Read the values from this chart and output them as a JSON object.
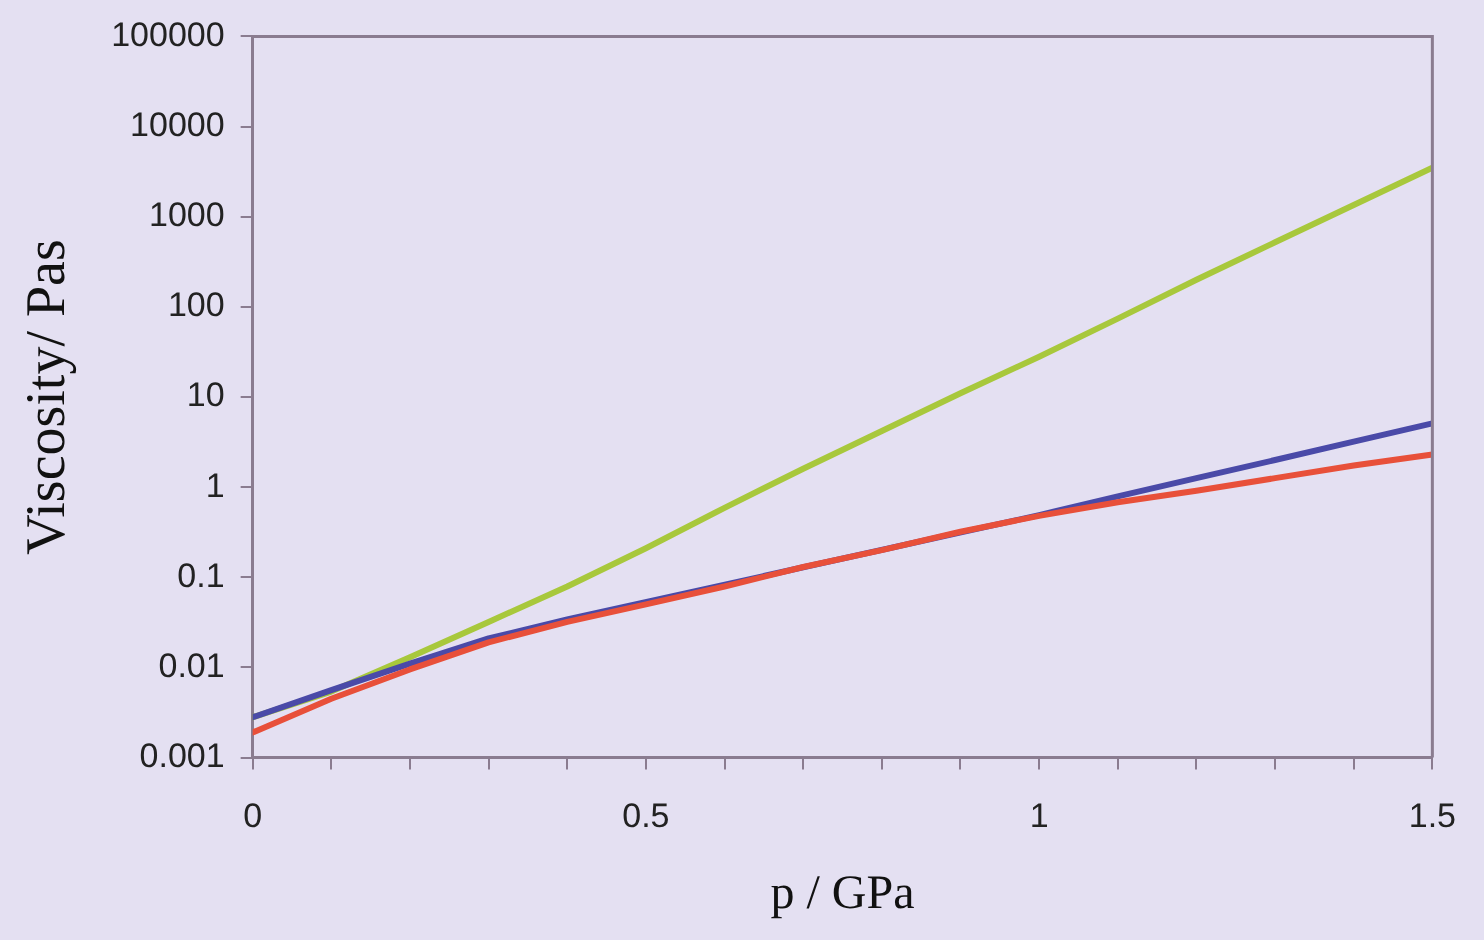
{
  "chart_data": {
    "type": "line",
    "xlabel": "p / GPa",
    "ylabel": "Viscosity/ Pas",
    "log": "y",
    "grid": false,
    "legend": false,
    "marker": "none",
    "line_style": "solid",
    "x": [
      0,
      0.1,
      0.2,
      0.3,
      0.4,
      0.5,
      0.6,
      0.7,
      0.8,
      0.9,
      1.0,
      1.1,
      1.2,
      1.3,
      1.4,
      1.5
    ],
    "series": [
      {
        "color": "#a8c83c",
        "values": [
          0.0028,
          0.0054,
          0.013,
          0.032,
          0.079,
          0.21,
          0.59,
          1.6,
          4.2,
          11,
          28,
          74,
          200,
          520,
          1350,
          3500
        ]
      },
      {
        "color": "#4a4aa8",
        "values": [
          0.0028,
          0.0056,
          0.011,
          0.021,
          0.034,
          null,
          null,
          null,
          null,
          null,
          0.49,
          0.79,
          1.26,
          2.0,
          3.2,
          5.1
        ]
      },
      {
        "color": "#e8503a",
        "values": [
          0.0019,
          0.0045,
          0.0095,
          0.019,
          0.032,
          0.05,
          0.079,
          0.13,
          0.2,
          0.32,
          0.48,
          0.68,
          0.91,
          1.26,
          1.74,
          2.3
        ]
      }
    ],
    "xlim": [
      0,
      1.5
    ],
    "xticks": [
      0,
      {
        "value": 0.1,
        "label": null
      },
      {
        "value": 0.2,
        "label": null
      },
      {
        "value": 0.3,
        "label": null
      },
      {
        "value": 0.4,
        "label": null
      },
      0.5,
      {
        "value": 0.6,
        "label": null
      },
      {
        "value": 0.7,
        "label": null
      },
      {
        "value": 0.8,
        "label": null
      },
      {
        "value": 0.9,
        "label": null
      },
      1,
      {
        "value": 1.1,
        "label": null
      },
      {
        "value": 1.2,
        "label": null
      },
      {
        "value": 1.3,
        "label": null
      },
      {
        "value": 1.4,
        "label": null
      },
      1.5
    ],
    "ylim": [
      0.001,
      100000
    ],
    "yticks": [
      0.001,
      0.01,
      0.1,
      1,
      10,
      100,
      1000,
      10000,
      100000
    ]
  }
}
